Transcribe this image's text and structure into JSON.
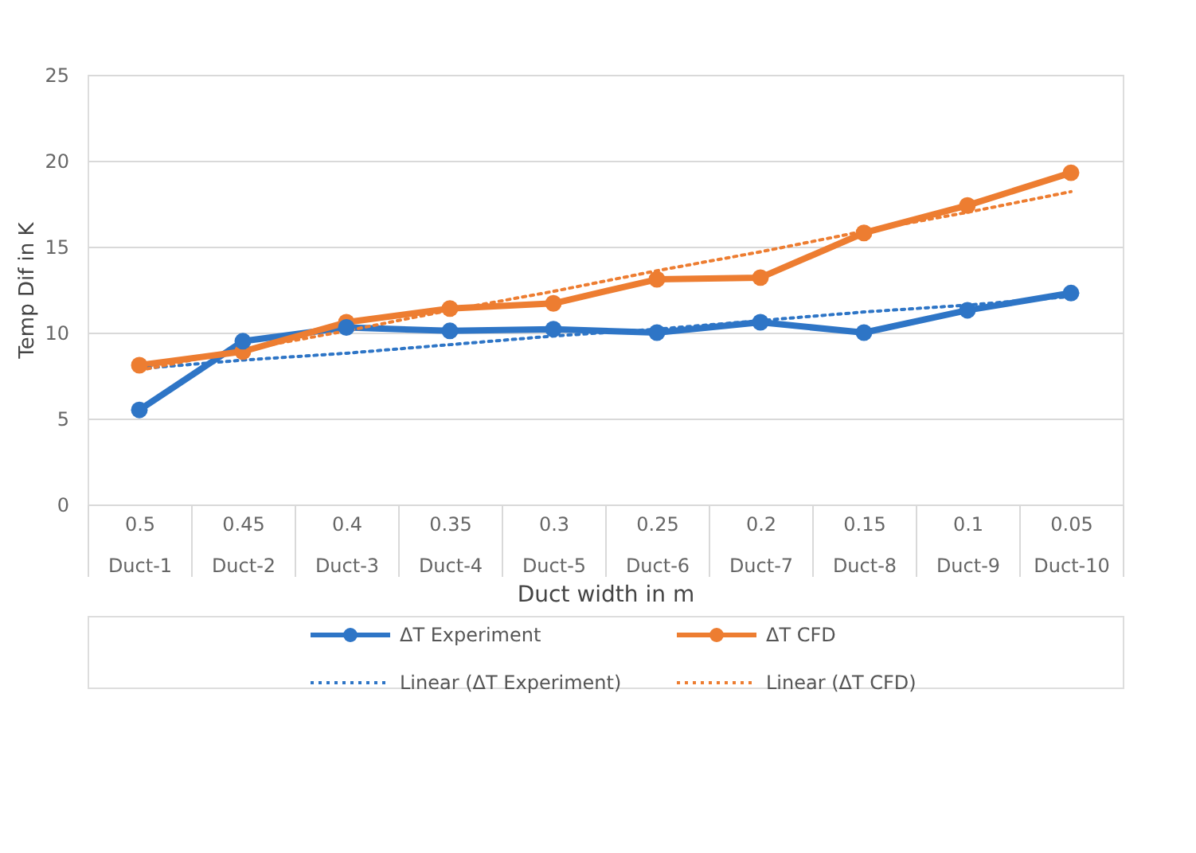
{
  "chart_data": {
    "type": "line",
    "xlabel": "Duct width in m",
    "ylabel": "Temp Dif  in K",
    "categories": [
      "0.5\nDuct-1",
      "0.45\nDuct-2",
      "0.4\nDuct-3",
      "0.35\nDuct-4",
      "0.3\nDuct-5",
      "0.25\nDuct-6",
      "0.2\nDuct-7",
      "0.15\nDuct-8",
      "0.1\nDuct-9",
      "0.05\nDuct-10"
    ],
    "series": [
      {
        "name": "ΔT Experiment",
        "color": "#2e75c6",
        "marker": "circle",
        "line_style": "solid",
        "values": [
          5.5,
          9.5,
          10.3,
          10.1,
          10.2,
          10.0,
          10.6,
          10.0,
          11.3,
          12.3
        ]
      },
      {
        "name": "ΔT CFD",
        "color": "#ed7d31",
        "marker": "circle",
        "line_style": "solid",
        "values": [
          8.1,
          8.9,
          10.6,
          11.4,
          11.7,
          13.1,
          13.2,
          15.8,
          17.4,
          19.3
        ]
      },
      {
        "name": "Linear (ΔT Experiment)",
        "color": "#2e75c6",
        "marker": "none",
        "line_style": "dotted",
        "values": [
          7.9,
          8.4,
          8.8,
          9.3,
          9.8,
          10.2,
          10.7,
          11.2,
          11.6,
          12.1
        ]
      },
      {
        "name": "Linear (ΔT CFD)",
        "color": "#ed7d31",
        "marker": "none",
        "line_style": "dotted",
        "values": [
          7.8,
          9.0,
          10.1,
          11.3,
          12.4,
          13.6,
          14.7,
          15.9,
          17.0,
          18.2
        ]
      }
    ],
    "ylim": [
      0,
      25
    ],
    "yticks": [
      0,
      5,
      10,
      15,
      20,
      25
    ],
    "grid": "y",
    "legend": "bottom"
  }
}
